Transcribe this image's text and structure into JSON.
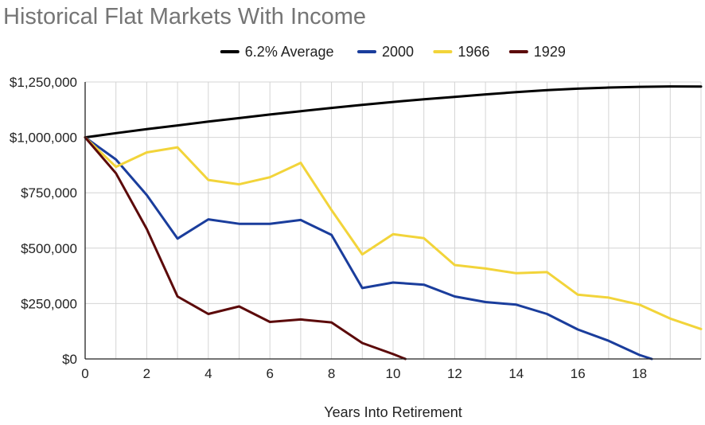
{
  "chart_data": {
    "type": "line",
    "title": "Historical Flat Markets With Income",
    "xlabel": "Years Into Retirement",
    "ylabel": "",
    "xlim": [
      0,
      20
    ],
    "ylim": [
      0,
      1250000
    ],
    "x_ticks": [
      0,
      2,
      4,
      6,
      8,
      10,
      12,
      14,
      16,
      18
    ],
    "x_tick_labels": [
      "0",
      "2",
      "4",
      "6",
      "8",
      "10",
      "12",
      "14",
      "16",
      "18"
    ],
    "y_ticks": [
      0,
      250000,
      500000,
      750000,
      1000000,
      1250000
    ],
    "y_tick_labels": [
      "$0",
      "$250,000",
      "$500,000",
      "$750,000",
      "$1,000,000",
      "$1,250,000"
    ],
    "grid": true,
    "legend_position": "top",
    "series": [
      {
        "name": "6.2% Average",
        "color": "#000000",
        "x": [
          0,
          1,
          2,
          3,
          4,
          5,
          6,
          7,
          8,
          9,
          10,
          11,
          12,
          13,
          14,
          15,
          16,
          17,
          18,
          19,
          20
        ],
        "values": [
          1000000,
          1019000,
          1037000,
          1054000,
          1071000,
          1087000,
          1103000,
          1118000,
          1133000,
          1147000,
          1160000,
          1172000,
          1183000,
          1194000,
          1204000,
          1213000,
          1220000,
          1225000,
          1228000,
          1230000,
          1229000
        ]
      },
      {
        "name": "2000",
        "color": "#1a3d9c",
        "x": [
          0,
          1,
          2,
          3,
          4,
          5,
          6,
          7,
          8,
          9,
          10,
          11,
          12,
          13,
          14,
          15,
          16,
          17,
          18,
          18.4
        ],
        "values": [
          1000000,
          900000,
          740000,
          543000,
          630000,
          610000,
          610000,
          627000,
          560000,
          320000,
          345000,
          335000,
          282000,
          257000,
          245000,
          203000,
          133000,
          82000,
          18000,
          0
        ]
      },
      {
        "name": "1966",
        "color": "#f2d43a",
        "x": [
          0,
          1,
          2,
          3,
          4,
          5,
          6,
          7,
          8,
          9,
          10,
          11,
          12,
          13,
          14,
          15,
          16,
          17,
          18,
          19,
          20
        ],
        "values": [
          1000000,
          867000,
          932000,
          955000,
          808000,
          788000,
          820000,
          885000,
          672000,
          472000,
          563000,
          545000,
          424000,
          408000,
          387000,
          392000,
          290000,
          277000,
          245000,
          182000,
          135000
        ]
      },
      {
        "name": "1929",
        "color": "#5c0a0a",
        "x": [
          0,
          1,
          2,
          3,
          4,
          5,
          6,
          7,
          8,
          9,
          10,
          10.4
        ],
        "values": [
          1000000,
          838000,
          587000,
          282000,
          203000,
          237000,
          167000,
          178000,
          165000,
          72000,
          22000,
          0
        ]
      }
    ]
  }
}
